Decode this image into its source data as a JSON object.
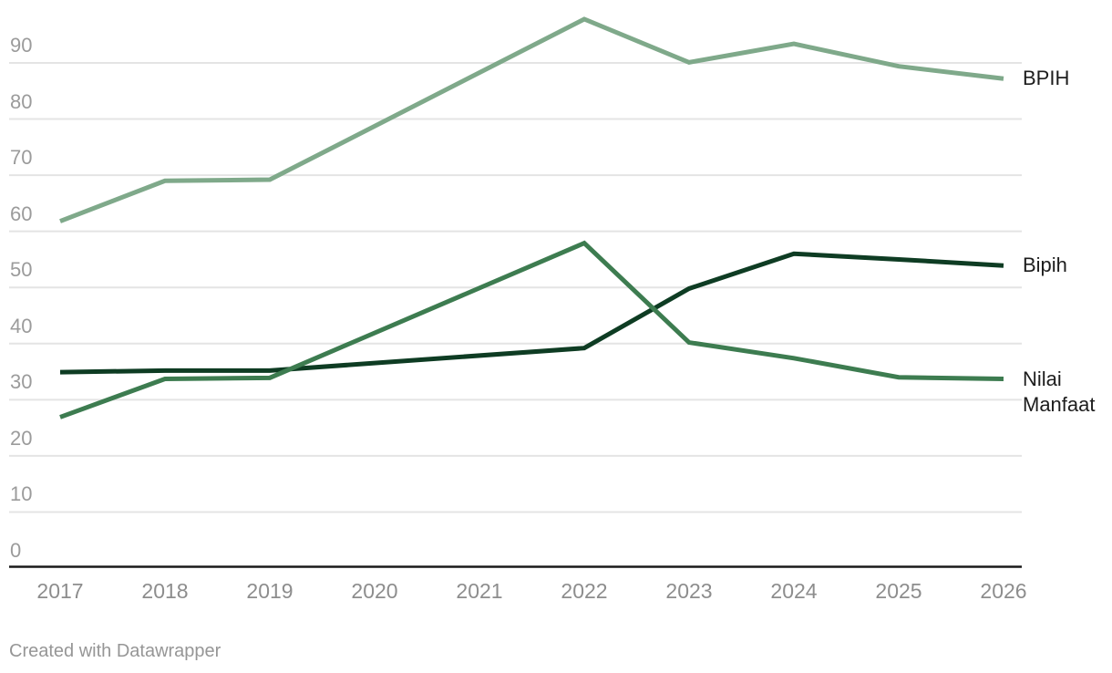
{
  "chart_data": {
    "type": "line",
    "x": [
      2017,
      2018,
      2019,
      2020,
      2021,
      2022,
      2023,
      2024,
      2025,
      2026
    ],
    "series": [
      {
        "name": "BPIH",
        "label": "BPIH",
        "color": "#7fa98a",
        "values": [
          61.8,
          69.0,
          69.2,
          null,
          null,
          97.8,
          90.1,
          93.4,
          89.4,
          87.2
        ]
      },
      {
        "name": "Bipih",
        "label": "Bipih",
        "color": "#0e3c23",
        "values": [
          34.9,
          35.2,
          35.2,
          null,
          null,
          39.2,
          49.8,
          56.0,
          55.0,
          53.9
        ]
      },
      {
        "name": "Nilai Manfaat",
        "label": "Nilai Manfaat",
        "color": "#3d7c50",
        "values": [
          26.9,
          33.7,
          33.9,
          null,
          null,
          57.9,
          40.2,
          37.4,
          34.0,
          33.7
        ]
      }
    ],
    "y_ticks": [
      0,
      10,
      20,
      30,
      40,
      50,
      60,
      70,
      80,
      90
    ],
    "ylim": [
      0,
      100
    ],
    "xlabel": "",
    "ylabel": "",
    "title": "",
    "grid": true,
    "gap_years_interpolated": [
      2020,
      2021
    ],
    "legend_position": "right-of-line-ends"
  },
  "colors": {
    "background": "#ffffff",
    "gridline": "#e4e4e4",
    "axis_line": "#1a1a1a",
    "y_tick_text": "#9b9b9b",
    "x_tick_text": "#8d8d8d",
    "series_label_text": "#1d1d1d",
    "attribution_text": "#969696"
  },
  "attribution": "Created with Datawrapper"
}
